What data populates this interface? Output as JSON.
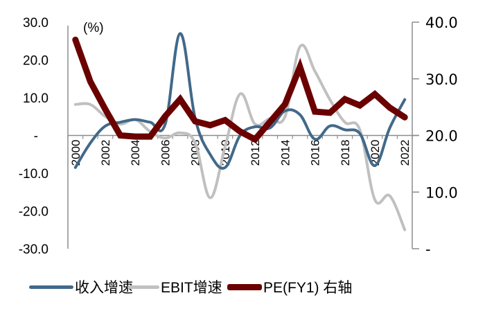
{
  "chart_data": {
    "type": "line",
    "title": "",
    "unit_label": "(%)",
    "x": [
      "2000",
      "2001",
      "2002",
      "2003",
      "2004",
      "2005",
      "2006",
      "2007",
      "2008",
      "2009",
      "2010",
      "2011",
      "2012",
      "2013",
      "2014",
      "2015",
      "2016",
      "2017",
      "2018",
      "2019",
      "2020",
      "2021",
      "2022"
    ],
    "x_tick_labels": [
      "2000",
      "2002",
      "2004",
      "2006",
      "2008",
      "2010",
      "2012",
      "2014",
      "2016",
      "2018",
      "2020",
      "2022"
    ],
    "series": [
      {
        "name": "收入增速",
        "axis": "left",
        "color": "#41698a",
        "smooth": true,
        "values": [
          -8.5,
          -2.0,
          2.5,
          3.5,
          4.2,
          3.5,
          3.0,
          27.0,
          4.5,
          -5.0,
          -8.5,
          0.0,
          2.3,
          2.0,
          6.5,
          5.5,
          -1.0,
          2.5,
          1.5,
          0.5,
          -8.0,
          2.0,
          9.5
        ]
      },
      {
        "name": "EBIT增速",
        "axis": "left",
        "color": "#c0c0c0",
        "smooth": true,
        "values": [
          8.2,
          8.2,
          5.0,
          3.0,
          4.2,
          1.0,
          -0.7,
          0.7,
          -2.0,
          -16.5,
          -3.0,
          11.0,
          3.0,
          4.5,
          5.0,
          23.5,
          17.0,
          9.5,
          3.5,
          1.5,
          -17.0,
          -16.0,
          -25.0
        ]
      },
      {
        "name": "PE(FY1) 右轴",
        "axis": "right",
        "color": "#6b0000",
        "smooth": false,
        "values": [
          36.9,
          29.5,
          24.6,
          20.0,
          19.8,
          19.8,
          23.4,
          26.4,
          22.5,
          21.8,
          22.7,
          20.7,
          19.3,
          22.4,
          25.5,
          32.1,
          24.2,
          24.0,
          26.4,
          25.3,
          27.3,
          24.9,
          23.2
        ]
      }
    ],
    "left_axis": {
      "ylim": [
        -30,
        30
      ],
      "ticks": [
        30,
        20,
        10,
        0,
        -10,
        -20,
        -30
      ],
      "tick_labels": [
        "30.0",
        "20.0",
        "10.0",
        "-",
        "-10.0",
        "-20.0",
        "-30.0"
      ]
    },
    "right_axis": {
      "ylim": [
        0,
        40
      ],
      "ticks": [
        40,
        30,
        20,
        10,
        0
      ],
      "tick_labels": [
        "40.0",
        "30.0",
        "20.0",
        "10.0",
        "-"
      ]
    },
    "grid": false,
    "legend_position": "bottom"
  },
  "legend": {
    "items": [
      {
        "label": "收入增速",
        "color": "#41698a"
      },
      {
        "label": "EBIT增速",
        "color": "#c0c0c0"
      },
      {
        "label": "PE(FY1) 右轴",
        "color": "#6b0000"
      }
    ]
  }
}
